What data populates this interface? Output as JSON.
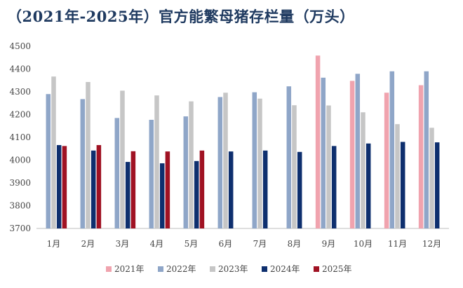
{
  "chart_data": {
    "type": "bar",
    "title": "（2021年-2025年）官方能繁母猪存栏量（万头）",
    "xlabel": "",
    "ylabel": "",
    "categories": [
      "1月",
      "2月",
      "3月",
      "4月",
      "5月",
      "6月",
      "7月",
      "8月",
      "9月",
      "10月",
      "11月",
      "12月"
    ],
    "ylim": [
      3700,
      4500
    ],
    "yticks": [
      3700,
      3800,
      3900,
      4000,
      4100,
      4200,
      4300,
      4400,
      4500
    ],
    "grid": false,
    "legend_position": "bottom",
    "series": [
      {
        "name": "2021年",
        "color": "#f0a3ae",
        "values": [
          null,
          null,
          null,
          null,
          null,
          null,
          null,
          null,
          4459,
          4348,
          4296,
          4329
        ]
      },
      {
        "name": "2022年",
        "color": "#8fa6c8",
        "values": [
          4290,
          4268,
          4185,
          4177,
          4192,
          4277,
          4298,
          4324,
          4362,
          4379,
          4390,
          4390
        ]
      },
      {
        "name": "2023年",
        "color": "#c6c6c6",
        "values": [
          4367,
          4343,
          4305,
          4284,
          4258,
          4296,
          4270,
          4241,
          4240,
          4210,
          4158,
          4142
        ]
      },
      {
        "name": "2024年",
        "color": "#0e2f6e",
        "values": [
          4066,
          4042,
          3992,
          3986,
          3996,
          4038,
          4042,
          4036,
          4062,
          4073,
          4080,
          4078
        ]
      },
      {
        "name": "2025年",
        "color": "#a01223",
        "values": [
          4062,
          4066,
          4039,
          4038,
          4042,
          null,
          null,
          null,
          null,
          null,
          null,
          null
        ]
      }
    ]
  }
}
